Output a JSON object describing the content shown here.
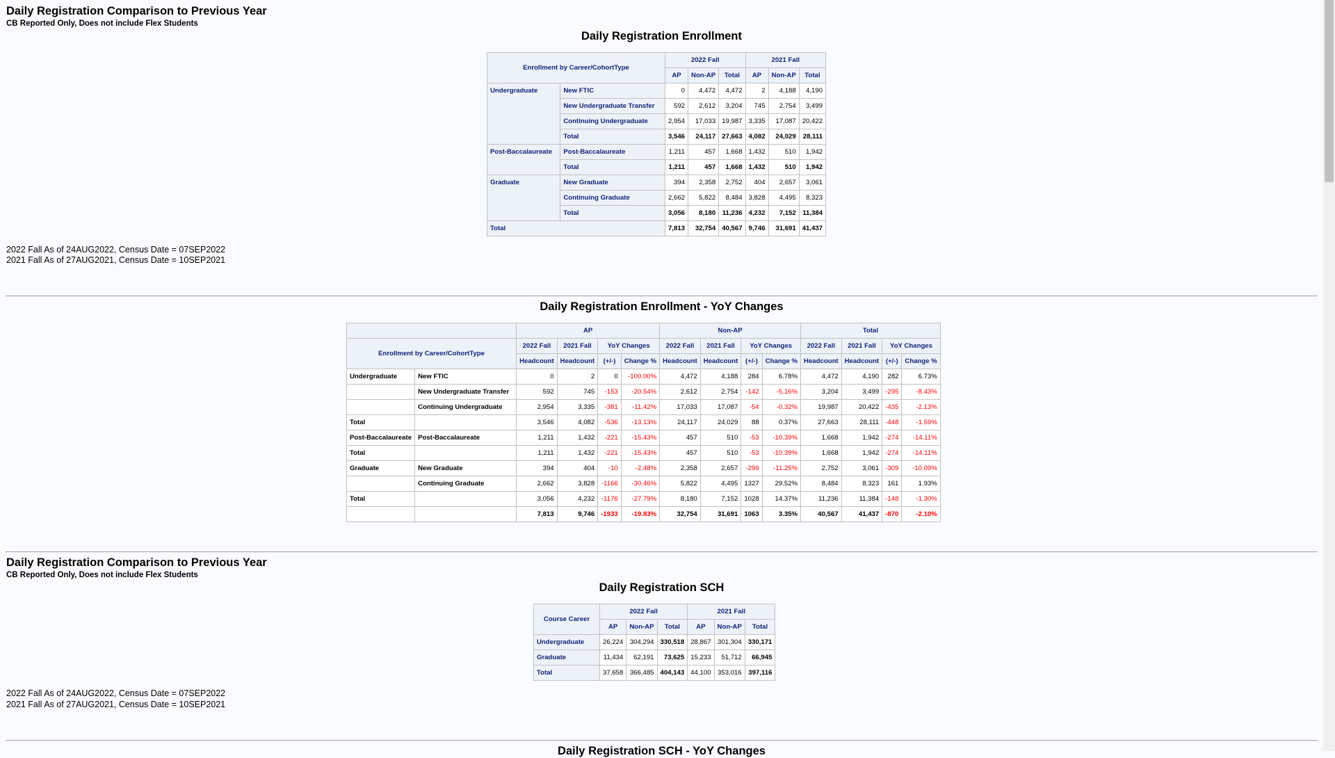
{
  "report1": {
    "title": "Daily Registration Comparison to Previous Year",
    "subtitle": "CB Reported Only, Does not include Flex Students"
  },
  "enrollment": {
    "title": "Daily Registration Enrollment",
    "corner_label": "Enrollment by Career/CohortType",
    "periods": [
      "2022 Fall",
      "2021 Fall"
    ],
    "cols": [
      "AP",
      "Non-AP",
      "Total"
    ],
    "rows": [
      {
        "career": "Undergraduate",
        "type": "New FTIC",
        "v": [
          "0",
          "4,472",
          "4,472",
          "2",
          "4,188",
          "4,190"
        ]
      },
      {
        "career": "",
        "type": "New Undergraduate Transfer",
        "v": [
          "592",
          "2,612",
          "3,204",
          "745",
          "2,754",
          "3,499"
        ]
      },
      {
        "career": "",
        "type": "Continuing Undergraduate",
        "v": [
          "2,954",
          "17,033",
          "19,987",
          "3,335",
          "17,087",
          "20,422"
        ]
      },
      {
        "career": "",
        "type": "Total",
        "v": [
          "3,546",
          "24,117",
          "27,663",
          "4,082",
          "24,029",
          "28,111"
        ]
      },
      {
        "career": "Post-Baccalaureate",
        "type": "Post-Baccalaureate",
        "v": [
          "1,211",
          "457",
          "1,668",
          "1,432",
          "510",
          "1,942"
        ]
      },
      {
        "career": "",
        "type": "Total",
        "v": [
          "1,211",
          "457",
          "1,668",
          "1,432",
          "510",
          "1,942"
        ]
      },
      {
        "career": "Graduate",
        "type": "New Graduate",
        "v": [
          "394",
          "2,358",
          "2,752",
          "404",
          "2,657",
          "3,061"
        ]
      },
      {
        "career": "",
        "type": "Continuing Graduate",
        "v": [
          "2,662",
          "5,822",
          "8,484",
          "3,828",
          "4,495",
          "8,323"
        ]
      },
      {
        "career": "",
        "type": "Total",
        "v": [
          "3,056",
          "8,180",
          "11,236",
          "4,232",
          "7,152",
          "11,384"
        ]
      },
      {
        "career": "Total",
        "type": "",
        "v": [
          "7,813",
          "32,754",
          "40,567",
          "9,746",
          "31,691",
          "41,437"
        ]
      }
    ],
    "notes": [
      "2022 Fall As of 24AUG2022, Census Date = 07SEP2022",
      "2021 Fall As of 27AUG2021, Census Date = 10SEP2021"
    ]
  },
  "yoy": {
    "title": "Daily Registration Enrollment - YoY Changes",
    "corner_label": "Enrollment by Career/CohortType",
    "groups": [
      "AP",
      "Non-AP",
      "Total"
    ],
    "subheads": [
      "2022 Fall",
      "2021 Fall",
      "YoY Changes"
    ],
    "leaf": [
      "Headcount",
      "Headcount",
      "(+/-)",
      "Change %"
    ],
    "rows": [
      {
        "c1": "Undergraduate",
        "c2": "New FTIC",
        "v": [
          "0",
          "2",
          "0",
          "-100.00%",
          "4,472",
          "4,188",
          "284",
          "6.78%",
          "4,472",
          "4,190",
          "282",
          "6.73%"
        ]
      },
      {
        "c1": "",
        "c2": "New Undergraduate Transfer",
        "v": [
          "592",
          "745",
          "-153",
          "-20.54%",
          "2,612",
          "2,754",
          "-142",
          "-5.16%",
          "3,204",
          "3,499",
          "-295",
          "-8.43%"
        ]
      },
      {
        "c1": "",
        "c2": "Continuing Undergraduate",
        "v": [
          "2,954",
          "3,335",
          "-381",
          "-11.42%",
          "17,033",
          "17,087",
          "-54",
          "-0.32%",
          "19,987",
          "20,422",
          "-435",
          "-2.13%"
        ]
      },
      {
        "c1": "Total",
        "c2": "",
        "v": [
          "3,546",
          "4,082",
          "-536",
          "-13.13%",
          "24,117",
          "24,029",
          "88",
          "0.37%",
          "27,663",
          "28,111",
          "-448",
          "-1.59%"
        ]
      },
      {
        "c1": "Post-Baccalaureate",
        "c2": "Post-Baccalaureate",
        "v": [
          "1,211",
          "1,432",
          "-221",
          "-15.43%",
          "457",
          "510",
          "-53",
          "-10.39%",
          "1,668",
          "1,942",
          "-274",
          "-14.11%"
        ]
      },
      {
        "c1": "Total",
        "c2": "",
        "v": [
          "1,211",
          "1,432",
          "-221",
          "-15.43%",
          "457",
          "510",
          "-53",
          "-10.39%",
          "1,668",
          "1,942",
          "-274",
          "-14.11%"
        ]
      },
      {
        "c1": "Graduate",
        "c2": "New Graduate",
        "v": [
          "394",
          "404",
          "-10",
          "-2.48%",
          "2,358",
          "2,657",
          "-299",
          "-11.25%",
          "2,752",
          "3,061",
          "-309",
          "-10.09%"
        ]
      },
      {
        "c1": "",
        "c2": "Continuing Graduate",
        "v": [
          "2,662",
          "3,828",
          "-1166",
          "-30.46%",
          "5,822",
          "4,495",
          "1327",
          "29.52%",
          "8,484",
          "8,323",
          "161",
          "1.93%"
        ]
      },
      {
        "c1": "Total",
        "c2": "",
        "v": [
          "3,056",
          "4,232",
          "-1176",
          "-27.79%",
          "8,180",
          "7,152",
          "1028",
          "14.37%",
          "11,236",
          "11,384",
          "-148",
          "-1.30%"
        ]
      },
      {
        "c1": "",
        "c2": "",
        "v": [
          "7,813",
          "9,746",
          "-1933",
          "-19.83%",
          "32,754",
          "31,691",
          "1063",
          "3.35%",
          "40,567",
          "41,437",
          "-870",
          "-2.10%"
        ]
      }
    ]
  },
  "report2": {
    "title": "Daily Registration Comparison to Previous Year",
    "subtitle": "CB Reported Only, Does not include Flex Students"
  },
  "sch": {
    "title": "Daily Registration SCH",
    "corner_label": "Course Career",
    "periods": [
      "2022 Fall",
      "2021 Fall"
    ],
    "cols": [
      "AP",
      "Non-AP",
      "Total"
    ],
    "rows": [
      {
        "career": "Undergraduate",
        "v": [
          "26,224",
          "304,294",
          "330,518",
          "28,867",
          "301,304",
          "330,171"
        ]
      },
      {
        "career": "Graduate",
        "v": [
          "11,434",
          "62,191",
          "73,625",
          "15,233",
          "51,712",
          "66,945"
        ]
      },
      {
        "career": "Total",
        "v": [
          "37,658",
          "366,485",
          "404,143",
          "44,100",
          "353,016",
          "397,116"
        ]
      }
    ],
    "notes": [
      "2022 Fall As of 24AUG2022, Census Date = 07SEP2022",
      "2021 Fall As of 27AUG2021, Census Date = 10SEP2021"
    ]
  },
  "next_section": {
    "title": "Daily Registration SCH - YoY Changes"
  }
}
